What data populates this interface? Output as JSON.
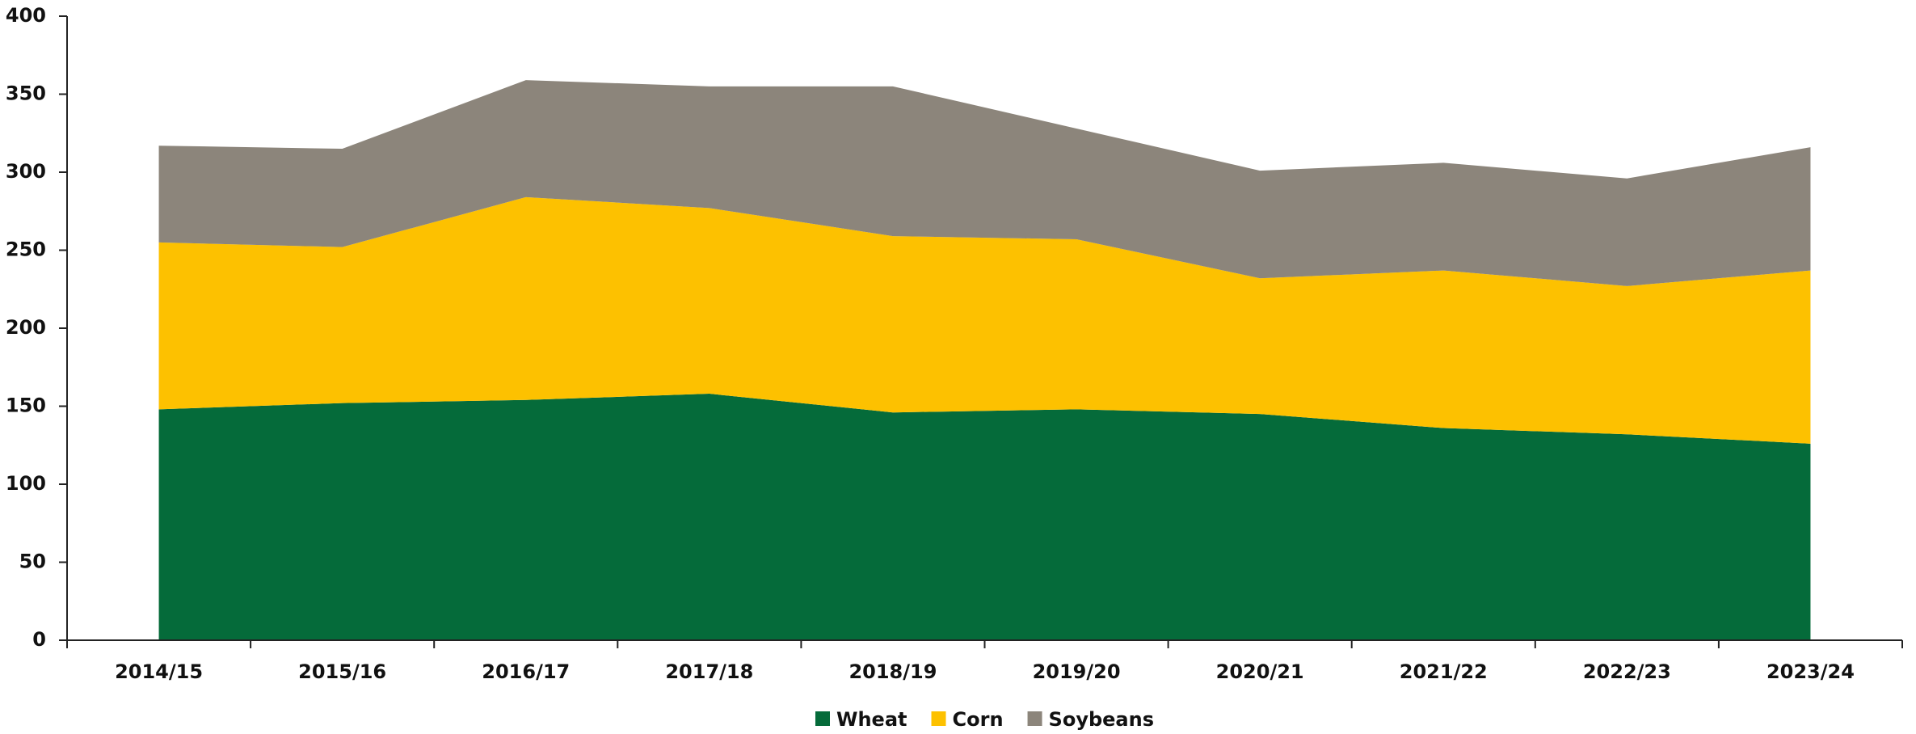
{
  "chart_data": {
    "type": "stacked_area",
    "categories": [
      "2014/15",
      "2015/16",
      "2016/17",
      "2017/18",
      "2018/19",
      "2019/20",
      "2020/21",
      "2021/22",
      "2022/23",
      "2023/24"
    ],
    "series": [
      {
        "name": "Wheat",
        "color": "#056b3a",
        "values": [
          148,
          152,
          154,
          158,
          146,
          148,
          145,
          136,
          132,
          126
        ]
      },
      {
        "name": "Corn",
        "color": "#fdc100",
        "values": [
          107,
          100,
          130,
          119,
          113,
          109,
          87,
          101,
          95,
          111
        ]
      },
      {
        "name": "Soybeans",
        "color": "#8c857b",
        "values": [
          62,
          63,
          75,
          78,
          96,
          71,
          69,
          69,
          69,
          79
        ]
      }
    ],
    "ylim": [
      0,
      400
    ],
    "yticks": [
      0,
      50,
      100,
      150,
      200,
      250,
      300,
      350,
      400
    ],
    "grid": false,
    "legend": "bottom"
  }
}
